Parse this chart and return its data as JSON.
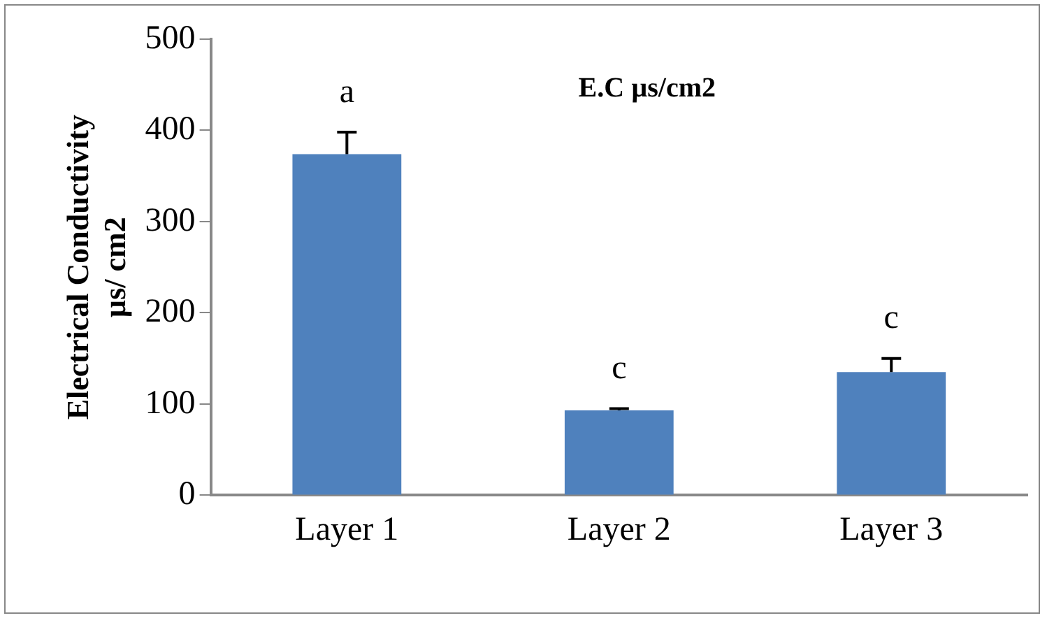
{
  "chart_data": {
    "type": "bar",
    "title": "E.C µs/cm2",
    "ylabel": "Electrical Conductivity\nµs/ cm2",
    "categories": [
      "Layer 1",
      "Layer 2",
      "Layer 3"
    ],
    "values": [
      374,
      93,
      135
    ],
    "color": "#4f81bd",
    "errors": [
      [
        374,
        398
      ],
      [
        93,
        95
      ],
      [
        135,
        150
      ]
    ],
    "ylim": [
      0,
      500
    ],
    "yticks": [
      0,
      100,
      200,
      300,
      400,
      500
    ],
    "grid": false,
    "legend": false,
    "annotations": [
      "a",
      "c",
      "c"
    ]
  }
}
